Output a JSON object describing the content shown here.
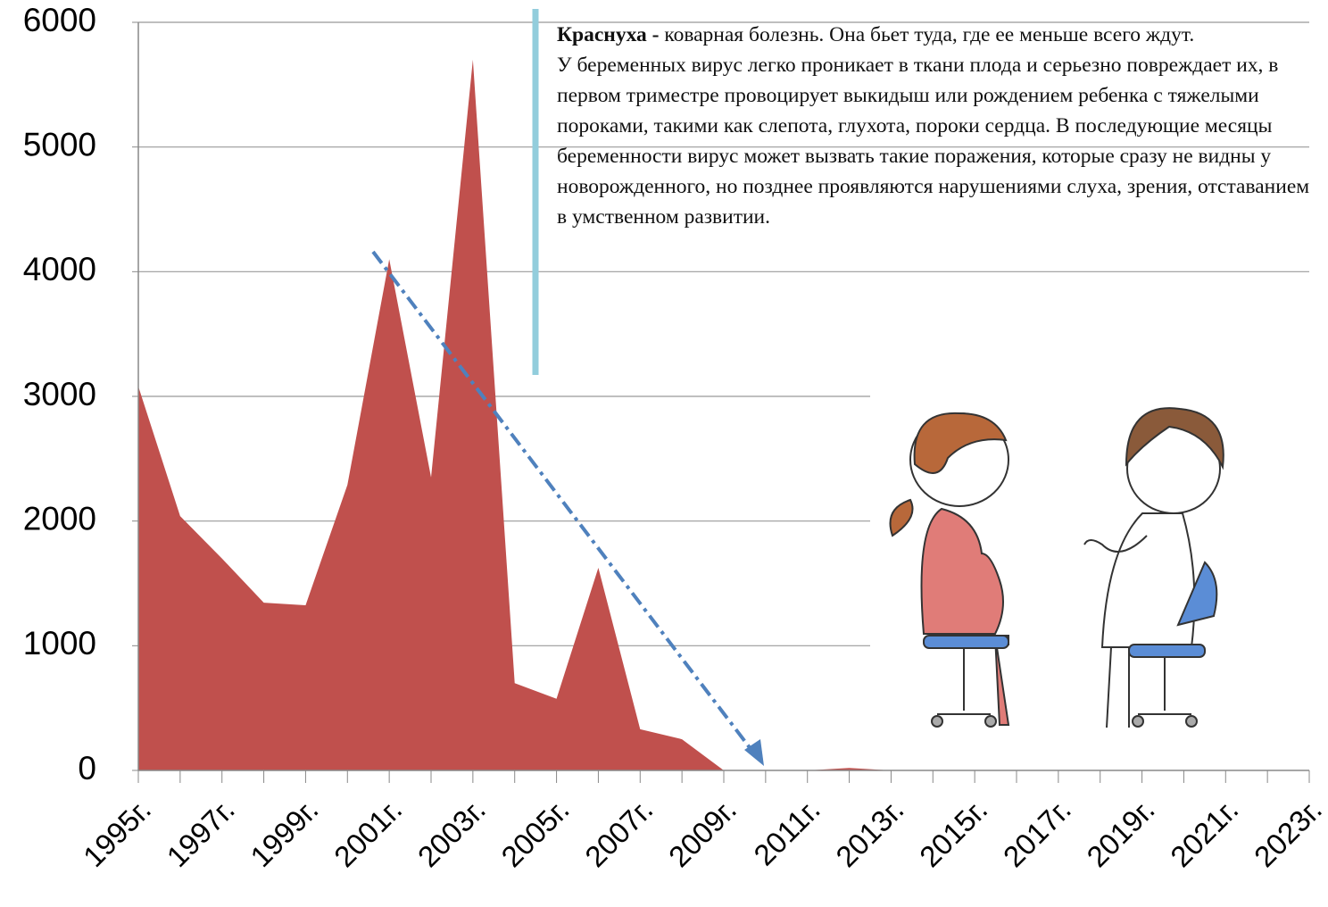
{
  "chart_data": {
    "type": "area",
    "categories": [
      "1995г.",
      null,
      "1997г.",
      null,
      "1999г.",
      null,
      "2001г.",
      null,
      "2003г.",
      null,
      "2005г.",
      null,
      "2007г.",
      null,
      "2009г.",
      null,
      "2011г.",
      null,
      "2013г.",
      null,
      "2015г.",
      null,
      "2017г.",
      null,
      "2019г.",
      null,
      "2021г.",
      null,
      "2023г."
    ],
    "values": [
      3080,
      2040,
      1700,
      1345,
      1325,
      2290,
      4100,
      2350,
      5700,
      700,
      575,
      1625,
      330,
      250,
      0,
      0,
      0,
      20,
      0,
      0,
      0,
      0,
      0,
      0,
      0,
      0,
      0,
      0,
      0
    ],
    "color": "#c0504d",
    "ylim": [
      0,
      6000
    ],
    "yticks": [
      0,
      1000,
      2000,
      3000,
      4000,
      5000,
      6000
    ],
    "grid": true,
    "annotation_title": "Краснуха -",
    "annotation": [
      "коварная болезнь. Она бьет туда, где ее меньше всего ждут.",
      "У беременных вирус легко проникает в ткани плода и серьезно повреждает их, в первом триместре провоцирует выкидыш или рождением ребенка с тяжелыми пороками, такими как слепота, глухота, пороки сердца. В последующие месяцы беременности вирус может вызвать такие поражения, которые сразу не видны у новорожденного, но позднее проявляются нарушениями слуха, зрения, отставанием в умственном развитии."
    ]
  }
}
